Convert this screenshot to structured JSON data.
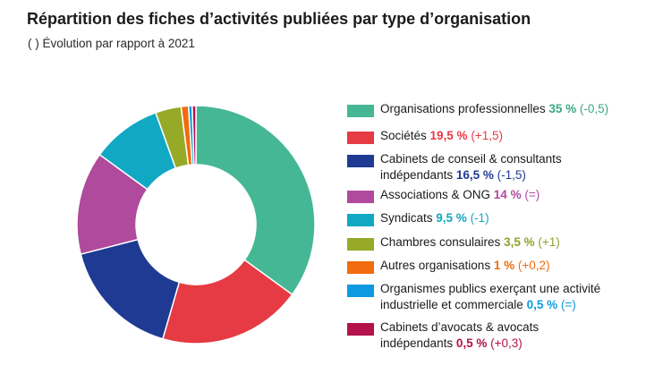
{
  "title": "Répartition des fiches d’activités publiées par type d’organisation",
  "subtitle": "( ) Évolution par rapport à 2021",
  "chart_data": {
    "type": "pie",
    "donut": true,
    "legend_position": "right",
    "slices": [
      {
        "label": "Organisations professionnelles",
        "value": 35,
        "value_label": "35 %",
        "change": "(-0,5)",
        "color": "#45b794",
        "text_color": "#3aa884"
      },
      {
        "label": "Sociétés",
        "value": 19.5,
        "value_label": "19,5 %",
        "change": "(+1,5)",
        "color": "#e63a44",
        "text_color": "#e63a44"
      },
      {
        "label": "Cabinets de conseil & consultants indépendants",
        "value": 16.5,
        "value_label": "16,5 %",
        "change": "(-1,5)",
        "color": "#1f3a93",
        "text_color": "#1f3a93"
      },
      {
        "label": "Associations & ONG",
        "value": 14,
        "value_label": "14 %",
        "change": "(=)",
        "color": "#b04a9c",
        "text_color": "#b04a9c"
      },
      {
        "label": "Syndicats",
        "value": 9.5,
        "value_label": "9,5 %",
        "change": "(-1)",
        "color": "#11a8c4",
        "text_color": "#11a8c4"
      },
      {
        "label": "Chambres consulaires",
        "value": 3.5,
        "value_label": "3,5 %",
        "change": "(+1)",
        "color": "#97aa28",
        "text_color": "#8ea12a"
      },
      {
        "label": "Autres organisations",
        "value": 1,
        "value_label": "1 %",
        "change": "(+0,2)",
        "color": "#f06c0e",
        "text_color": "#f06c0e"
      },
      {
        "label": "Organismes publics exerçant une activité industrielle et commerciale",
        "value": 0.5,
        "value_label": "0,5 %",
        "change": "(=)",
        "color": "#0c9be0",
        "text_color": "#0c9be0"
      },
      {
        "label": "Cabinets d’avocats & avocats indépendants",
        "value": 0.5,
        "value_label": "0,5 %",
        "change": "(+0,3)",
        "color": "#b3124a",
        "text_color": "#b3124a"
      }
    ]
  }
}
